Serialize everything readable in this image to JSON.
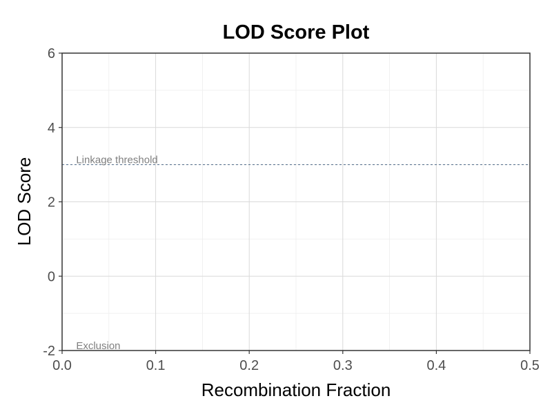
{
  "chart_data": {
    "type": "line",
    "title": "LOD Score Plot",
    "xlabel": "Recombination Fraction",
    "ylabel": "LOD Score",
    "xlim": [
      0,
      0.5
    ],
    "ylim": [
      -2,
      6
    ],
    "x_ticks": [
      "0.0",
      "0.1",
      "0.2",
      "0.3",
      "0.4",
      "0.5"
    ],
    "y_ticks": [
      "-2",
      "0",
      "2",
      "4",
      "6"
    ],
    "grid": true,
    "series": [],
    "reference_lines": [
      {
        "label": "Linkage threshold",
        "y": 3,
        "style": "dashed",
        "color": "#4a6785"
      },
      {
        "label": "Exclusion",
        "y": -2,
        "style": "dashed",
        "color": "#4a6785"
      }
    ]
  }
}
